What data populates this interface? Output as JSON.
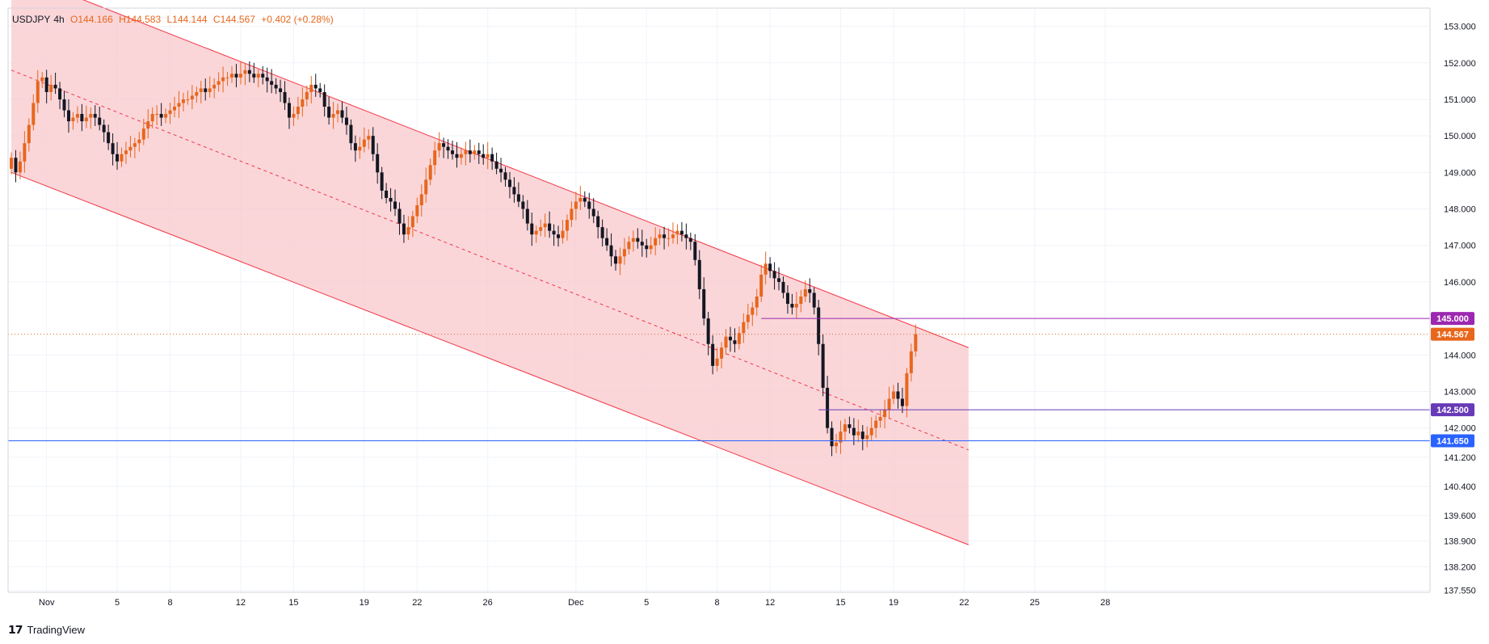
{
  "legend": {
    "symbol": "USDJPY",
    "interval": "4h",
    "open": "O144.166",
    "high": "H144.583",
    "low": "L144.144",
    "close": "C144.567",
    "change": "+0.402 (+0.28%)"
  },
  "brand": {
    "icon": "tradingview-logo-icon",
    "name": "TradingView"
  },
  "colors": {
    "up": "#e8661c",
    "down": "#131722",
    "channel_fill": "#f8c8cc",
    "channel_line": "#f23645",
    "blue_line": "#2962ff",
    "purple_line": "#9c27b0",
    "last_price": "#e8661c"
  },
  "chart_data": {
    "type": "candlestick",
    "symbol": "USDJPY",
    "interval": "4h",
    "y_range": [
      137.5,
      153.5
    ],
    "y_ticks": [
      "153.000",
      "152.000",
      "151.000",
      "150.000",
      "149.000",
      "148.000",
      "147.000",
      "146.000",
      "144.000",
      "143.000",
      "142.000",
      "141.200",
      "140.400",
      "139.600",
      "138.900",
      "138.200",
      "137.550"
    ],
    "y_tick_values": [
      153,
      152,
      151,
      150,
      149,
      148,
      147,
      146,
      144,
      143,
      142,
      141.2,
      140.4,
      139.6,
      138.9,
      138.2,
      137.55
    ],
    "x_ticks": [
      {
        "label": "Nov",
        "index": 8
      },
      {
        "label": "5",
        "index": 24
      },
      {
        "label": "8",
        "index": 36
      },
      {
        "label": "12",
        "index": 52
      },
      {
        "label": "15",
        "index": 64
      },
      {
        "label": "19",
        "index": 80
      },
      {
        "label": "22",
        "index": 92
      },
      {
        "label": "26",
        "index": 108
      },
      {
        "label": "Dec",
        "index": 128
      },
      {
        "label": "5",
        "index": 144
      },
      {
        "label": "8",
        "index": 160
      },
      {
        "label": "12",
        "index": 172
      },
      {
        "label": "15",
        "index": 188
      },
      {
        "label": "19",
        "index": 200
      },
      {
        "label": "22",
        "index": 216
      },
      {
        "label": "25",
        "index": 232
      },
      {
        "label": "28",
        "index": 248
      }
    ],
    "closes": [
      149.4,
      149.0,
      149.3,
      149.8,
      150.3,
      150.9,
      151.5,
      151.6,
      151.2,
      151.4,
      151.3,
      151.0,
      150.7,
      150.4,
      150.5,
      150.6,
      150.4,
      150.5,
      150.6,
      150.5,
      150.3,
      150.1,
      149.8,
      149.5,
      149.3,
      149.5,
      149.6,
      149.7,
      149.8,
      149.9,
      150.2,
      150.4,
      150.6,
      150.6,
      150.5,
      150.6,
      150.7,
      150.8,
      150.9,
      151.0,
      151.0,
      151.1,
      151.2,
      151.3,
      151.2,
      151.3,
      151.4,
      151.5,
      151.6,
      151.6,
      151.7,
      151.6,
      151.7,
      151.8,
      151.7,
      151.6,
      151.7,
      151.6,
      151.5,
      151.4,
      151.3,
      151.2,
      150.9,
      150.5,
      150.6,
      150.8,
      151.0,
      151.2,
      151.4,
      151.3,
      151.2,
      150.8,
      150.5,
      150.6,
      150.7,
      150.5,
      150.3,
      149.8,
      149.6,
      149.7,
      149.9,
      150.0,
      149.5,
      149.0,
      148.5,
      148.3,
      148.2,
      148.0,
      147.6,
      147.3,
      147.5,
      147.8,
      148.1,
      148.4,
      148.8,
      149.2,
      149.6,
      149.8,
      149.7,
      149.6,
      149.5,
      149.4,
      149.5,
      149.6,
      149.5,
      149.6,
      149.5,
      149.4,
      149.5,
      149.3,
      149.1,
      149.0,
      148.8,
      148.6,
      148.4,
      148.2,
      148.0,
      147.6,
      147.3,
      147.4,
      147.5,
      147.6,
      147.4,
      147.3,
      147.2,
      147.4,
      147.7,
      148.0,
      148.2,
      148.3,
      148.2,
      148.0,
      147.8,
      147.5,
      147.2,
      147.0,
      146.7,
      146.5,
      146.7,
      146.9,
      147.1,
      147.2,
      147.1,
      147.0,
      146.9,
      147.0,
      147.2,
      147.3,
      147.2,
      147.2,
      147.3,
      147.4,
      147.3,
      147.2,
      147.1,
      146.6,
      145.8,
      145.0,
      144.3,
      143.7,
      143.9,
      144.2,
      144.5,
      144.4,
      144.3,
      144.6,
      144.9,
      145.1,
      145.3,
      145.6,
      146.2,
      146.5,
      146.3,
      146.1,
      146.0,
      145.7,
      145.4,
      145.3,
      145.4,
      145.6,
      145.8,
      145.7,
      145.3,
      144.3,
      143.1,
      142.0,
      141.5,
      141.6,
      141.9,
      142.1,
      142.0,
      141.8,
      141.9,
      141.7,
      141.8,
      142.0,
      142.2,
      142.3,
      142.5,
      142.8,
      143.0,
      142.8,
      142.6,
      143.5,
      144.1,
      144.567
    ],
    "highs_lows_note": "each candle spans roughly ±0.25 around open/close",
    "channel": {
      "upper": {
        "start_index": 0,
        "start_value": 154.5,
        "end_index": 217,
        "end_value": 144.2
      },
      "middle": {
        "start_index": 0,
        "start_value": 151.8,
        "end_index": 217,
        "end_value": 141.4
      },
      "lower": {
        "start_index": 0,
        "start_value": 149.0,
        "end_index": 217,
        "end_value": 138.8
      }
    },
    "horizontal_lines": [
      {
        "value": 145.0,
        "label": "145.000",
        "color": "#9c27b0",
        "start_index": 170
      },
      {
        "value": 142.5,
        "label": "142.500",
        "color": "#673ab7",
        "start_index": 183
      },
      {
        "value": 141.65,
        "label": "141.650",
        "color": "#2962ff",
        "start_index": 0
      }
    ],
    "last_price": {
      "value": 144.567,
      "label": "144.567"
    }
  }
}
